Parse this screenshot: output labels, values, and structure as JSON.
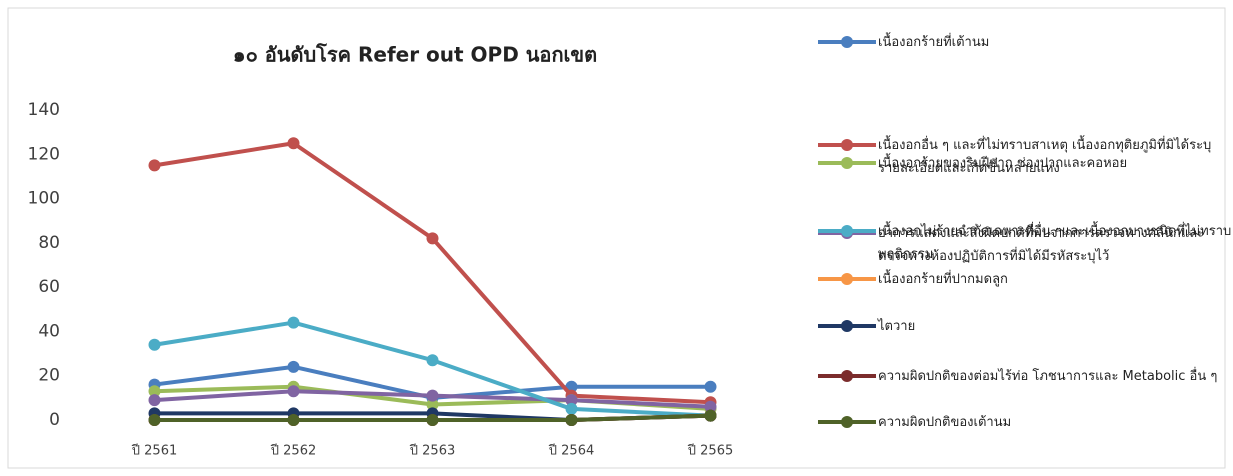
{
  "chart_data": {
    "type": "line",
    "title": "๑๐ อันดับโรค Refer out OPD นอกเขต",
    "categories": [
      "ปี 2561",
      "ปี 2562",
      "ปี 2563",
      "ปี 2564",
      "ปี 2565"
    ],
    "ylim": [
      0,
      140
    ],
    "yticks": [
      0,
      20,
      40,
      60,
      80,
      100,
      120,
      140
    ],
    "grid": false,
    "legend": "right",
    "series": [
      {
        "name": "เนื้องอกร้ายที่เต้านม",
        "color": "#4a7ebf",
        "values": [
          16,
          24,
          10,
          15,
          15
        ]
      },
      {
        "name": "เนื้องอกอื่น ๆ และที่ไม่ทราบสาเหตุ เนื้องอกทุติยภูมิที่มิได้ระบุรายละเอียดและเกิดขึ้นหลายแห่ง",
        "color": "#c0504d",
        "values": [
          115,
          125,
          82,
          11,
          8
        ]
      },
      {
        "name": "เนื้องอกร้ายของริมฝีปาก ช่องปากและคอหอย",
        "color": "#9bbb59",
        "values": [
          13,
          15,
          7,
          9,
          5
        ]
      },
      {
        "name": "อาการแสดงและสิ่งผิดปกติที่พบจากการตรวจทางคลินิกและตรวจทางห้องปฏิบัติการที่มิได้มีรหัสระบุไว้",
        "color": "#8064a2",
        "values": [
          9,
          13,
          11,
          9,
          6
        ]
      },
      {
        "name": "เนื้องอกไม่ร้ายจำกัดเฉพาะที่อื่น ๆและเนื้องอกบางชนิดที่ไม่ทราบพฤติกรรม",
        "color": "#4bacc6",
        "values": [
          34,
          44,
          27,
          5,
          2
        ]
      },
      {
        "name": "เนื้องอกร้ายที่ปากมดลูก",
        "color": "#f79646",
        "values": [
          0,
          0,
          0,
          0,
          2
        ]
      },
      {
        "name": "ไตวาย",
        "color": "#1f3864",
        "values": [
          3,
          3,
          3,
          0,
          2
        ]
      },
      {
        "name": "ความผิดปกติของต่อมไร้ท่อ โภชนาการและ Metabolic อื่น ๆ",
        "color": "#7b2c2c",
        "values": [
          0,
          0,
          0,
          0,
          2
        ]
      },
      {
        "name": "ความผิดปกติของเต้านม",
        "color": "#4f6228",
        "values": [
          0,
          0,
          0,
          0,
          2
        ]
      }
    ]
  }
}
